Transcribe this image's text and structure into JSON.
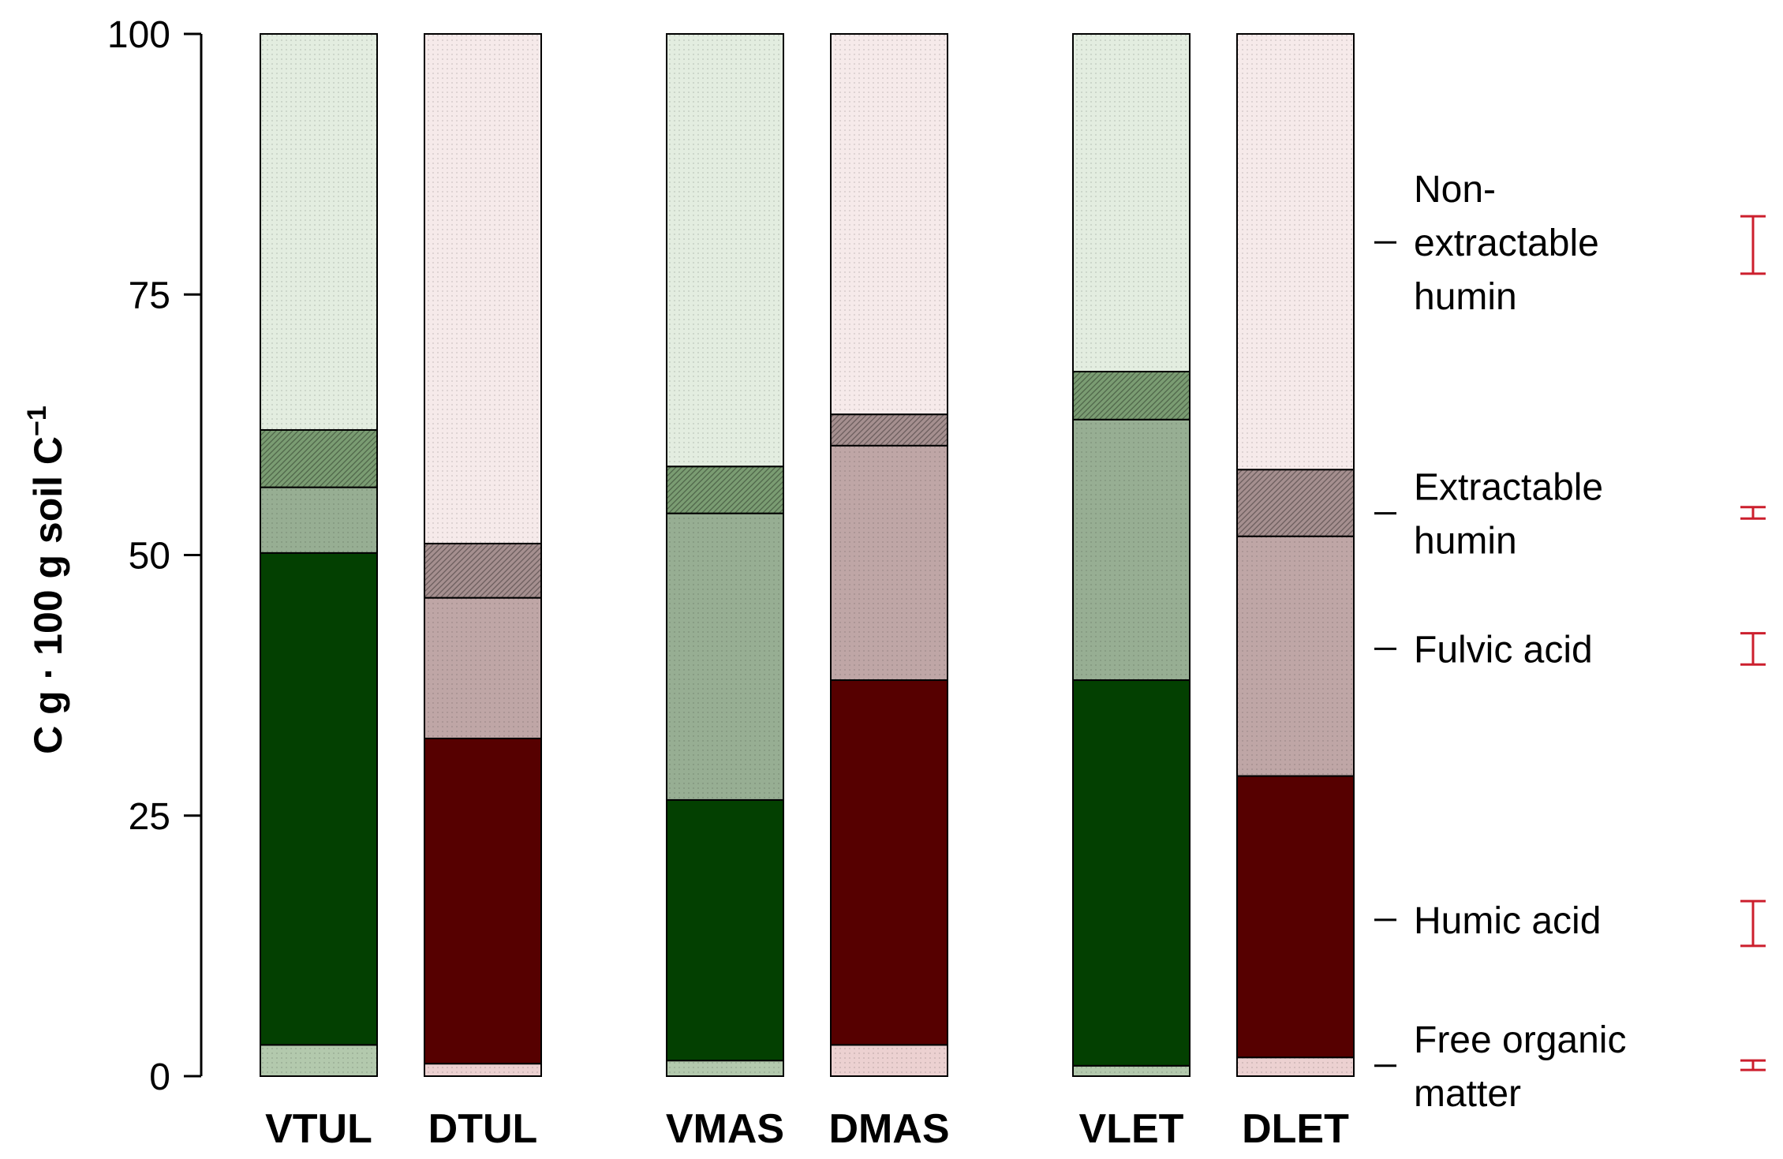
{
  "chart_data": {
    "type": "bar",
    "stacked": true,
    "title": "",
    "ylabel": "C g · 100 g soil C",
    "ylabel_superscript": "−1",
    "ylim": [
      0,
      100
    ],
    "yticks": [
      0,
      25,
      50,
      75,
      100
    ],
    "categories": [
      "VTUL",
      "DTUL",
      "VMAS",
      "DMAS",
      "VLET",
      "DLET"
    ],
    "bar_family": [
      "green",
      "red",
      "green",
      "red",
      "green",
      "red"
    ],
    "series": [
      {
        "name": "Free organic matter",
        "values": [
          3.0,
          1.2,
          1.5,
          3.0,
          1.0,
          1.8
        ]
      },
      {
        "name": "Humic acid",
        "values": [
          47.2,
          31.2,
          25.0,
          35.0,
          37.0,
          27.0
        ]
      },
      {
        "name": "Fulvic acid",
        "values": [
          6.3,
          13.5,
          27.5,
          22.5,
          25.0,
          23.0
        ]
      },
      {
        "name": "Extractable humin",
        "values": [
          5.5,
          5.2,
          4.5,
          3.0,
          4.6,
          6.4
        ]
      },
      {
        "name": "Non-extractable humin",
        "values": [
          38.0,
          48.9,
          41.5,
          36.5,
          32.4,
          41.8
        ]
      }
    ],
    "legend": [
      {
        "lines": [
          "Non-",
          "extractable",
          "humin"
        ],
        "y": 80.0,
        "err": [
          77.0,
          82.5
        ]
      },
      {
        "lines": [
          "Extractable",
          "humin"
        ],
        "y": 54.0,
        "err": [
          53.5,
          54.6
        ]
      },
      {
        "lines": [
          "Fulvic acid"
        ],
        "y": 41.0,
        "err": [
          39.5,
          42.5
        ]
      },
      {
        "lines": [
          "Humic acid"
        ],
        "y": 15.0,
        "err": [
          12.5,
          16.8
        ]
      },
      {
        "lines": [
          "Free organic",
          "matter"
        ],
        "y": 1.0,
        "err": [
          0.6,
          1.5
        ]
      }
    ],
    "colors": {
      "green": [
        "#b3c9ad",
        "#034001",
        "#97ae93",
        "#7a9c72",
        "#e3ede0"
      ],
      "red": [
        "#ecd1d1",
        "#560000",
        "#bfa6a6",
        "#a58f8f",
        "#f6eaea"
      ],
      "error_bar": "#cc1f2d"
    }
  }
}
